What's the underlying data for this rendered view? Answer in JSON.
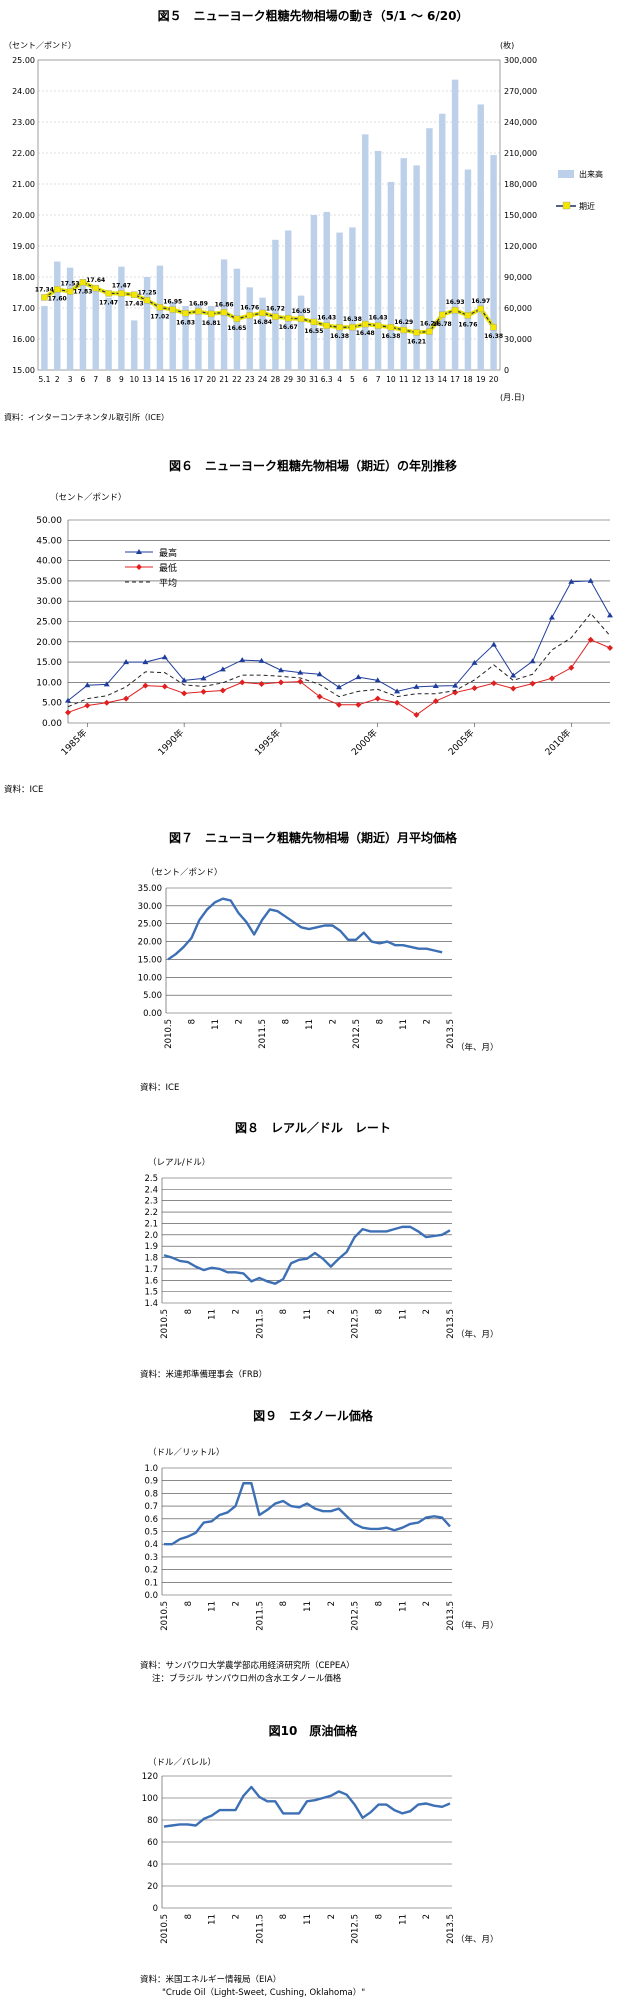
{
  "chart_data": [
    {
      "id": "fig5",
      "type": "bar+line",
      "title": "図５　ニューヨーク粗糖先物相場の動き（5/1 ～ 6/20）",
      "ylabel_left": "（セント／ポンド）",
      "ylabel_right": "(枚)",
      "xlabel": "(月.日)",
      "ylim_left": [
        15.0,
        25.0
      ],
      "ylim_right": [
        0,
        300000
      ],
      "left_ticks": [
        "15.00",
        "16.00",
        "17.00",
        "18.00",
        "19.00",
        "20.00",
        "21.00",
        "22.00",
        "23.00",
        "24.00",
        "25.00"
      ],
      "right_ticks": [
        "0",
        "30,000",
        "60,000",
        "90,000",
        "120,000",
        "150,000",
        "180,000",
        "210,000",
        "240,000",
        "270,000",
        "300,000"
      ],
      "categories": [
        "5.1",
        "2",
        "3",
        "6",
        "7",
        "8",
        "9",
        "10",
        "13",
        "14",
        "15",
        "16",
        "17",
        "20",
        "21",
        "22",
        "23",
        "24",
        "28",
        "29",
        "30",
        "31",
        "6.3",
        "4",
        "5",
        "6",
        "7",
        "10",
        "11",
        "12",
        "13",
        "14",
        "17",
        "18",
        "19",
        "20"
      ],
      "legend": [
        "出来高",
        "期近"
      ],
      "series": [
        {
          "name": "出来高",
          "values": [
            62000,
            105000,
            99000,
            88000,
            82000,
            70000,
            100000,
            48000,
            90000,
            101000,
            66000,
            62000,
            64000,
            62000,
            107000,
            98000,
            80000,
            70000,
            126000,
            135000,
            72000,
            150000,
            153000,
            133000,
            138000,
            228000,
            212000,
            182000,
            205000,
            198000,
            234000,
            248000,
            281000,
            194000,
            257000,
            208000
          ]
        },
        {
          "name": "期近",
          "values": [
            17.34,
            17.6,
            17.53,
            17.83,
            17.64,
            17.47,
            17.47,
            17.43,
            17.25,
            17.02,
            16.95,
            16.83,
            16.89,
            16.81,
            16.86,
            16.65,
            16.76,
            16.84,
            16.72,
            16.67,
            16.65,
            16.55,
            16.43,
            16.38,
            16.38,
            16.48,
            16.43,
            16.38,
            16.29,
            16.21,
            16.24,
            16.78,
            16.93,
            16.76,
            16.97,
            16.38
          ]
        }
      ],
      "point_labels": [
        "17.34",
        "17.60",
        "17.53",
        "17.83",
        "17.64",
        "17.47",
        "17.47",
        "17.43",
        "17.25",
        "17.02",
        "16.95",
        "16.83",
        "16.89",
        "16.81",
        "16.86",
        "16.65",
        "16.76",
        "16.84",
        "16.72",
        "16.67",
        "16.65",
        "16.55",
        "16.43",
        "16.38",
        "16.38",
        "16.48",
        "16.43",
        "16.38",
        "16.29",
        "16.21",
        "16.24",
        "16.78",
        "16.93",
        "16.76",
        "16.97",
        "16.38"
      ],
      "source": "資料：インターコンチネンタル取引所（ICE）"
    },
    {
      "id": "fig6",
      "type": "line",
      "title": "図６　ニューヨーク粗糖先物相場（期近）の年別推移",
      "ylabel": "（セント／ポンド）",
      "ylim": [
        0,
        50
      ],
      "y_ticks": [
        "0.00",
        "5.00",
        "10.00",
        "15.00",
        "20.00",
        "25.00",
        "30.00",
        "35.00",
        "40.00",
        "45.00",
        "50.00"
      ],
      "x_ticks": [
        "1985年",
        "1990年",
        "1995年",
        "2000年",
        "2005年",
        "2010年"
      ],
      "x": [
        1984,
        1985,
        1986,
        1987,
        1988,
        1989,
        1990,
        1991,
        1992,
        1993,
        1994,
        1995,
        1996,
        1997,
        1998,
        1999,
        2000,
        2001,
        2002,
        2003,
        2004,
        2005,
        2006,
        2007,
        2008,
        2009,
        2010,
        2011,
        2012
      ],
      "legend": [
        "最高",
        "最低",
        "平均"
      ],
      "series": [
        {
          "name": "最高",
          "values": [
            5.5,
            9.3,
            9.5,
            15.0,
            15.0,
            16.2,
            10.5,
            11.0,
            13.2,
            15.5,
            15.3,
            13.0,
            12.4,
            12.0,
            8.8,
            11.3,
            10.5,
            7.8,
            8.9,
            9.1,
            9.2,
            14.8,
            19.3,
            11.7,
            15.2,
            26.0,
            34.8,
            35.0,
            26.5
          ]
        },
        {
          "name": "最低",
          "values": [
            2.6,
            4.3,
            5.0,
            6.0,
            9.2,
            9.0,
            7.3,
            7.7,
            8.0,
            10.0,
            9.6,
            10.0,
            10.2,
            6.5,
            4.5,
            4.5,
            6.0,
            5.0,
            2.0,
            5.4,
            7.5,
            8.6,
            9.8,
            8.5,
            9.7,
            11.0,
            13.6,
            20.5,
            18.5
          ]
        },
        {
          "name": "平均",
          "values": [
            4.0,
            6.0,
            6.7,
            8.9,
            12.6,
            12.4,
            9.4,
            9.0,
            9.9,
            11.8,
            11.8,
            11.5,
            11.1,
            9.5,
            6.5,
            7.8,
            8.3,
            6.5,
            7.2,
            7.2,
            8.0,
            10.6,
            14.3,
            10.5,
            12.0,
            18.0,
            21.0,
            27.0,
            21.5
          ]
        }
      ],
      "source": "資料：ICE"
    },
    {
      "id": "fig7",
      "type": "line",
      "title": "図７　ニューヨーク粗糖先物相場（期近）月平均価格",
      "ylabel": "（セント／ポンド）",
      "xlabel": "（年、月）",
      "ylim": [
        0,
        35
      ],
      "y_ticks": [
        "0.00",
        "5.00",
        "10.00",
        "15.00",
        "20.00",
        "25.00",
        "30.00",
        "35.00"
      ],
      "x_ticks": [
        "2010.5",
        "8",
        "11",
        "2",
        "2011.5",
        "8",
        "11",
        "2",
        "2012.5",
        "8",
        "11",
        "2",
        "2013.5"
      ],
      "values": [
        15.0,
        16.5,
        18.5,
        21.0,
        26.0,
        29.0,
        31.0,
        32.0,
        31.5,
        28.0,
        25.5,
        22.0,
        26.0,
        29.0,
        28.5,
        27.0,
        25.5,
        24.0,
        23.5,
        24.0,
        24.5,
        24.5,
        23.0,
        20.5,
        20.5,
        22.5,
        20.0,
        19.5,
        20.0,
        19.0,
        19.0,
        18.5,
        18.0,
        18.0,
        17.5,
        17.0
      ],
      "source": "資料：ICE"
    },
    {
      "id": "fig8",
      "type": "line",
      "title": "図８　レアル／ドル　レート",
      "ylabel": "（レアル/ドル）",
      "xlabel": "（年、月）",
      "ylim": [
        1.4,
        2.5
      ],
      "y_ticks": [
        "1.4",
        "1.5",
        "1.6",
        "1.7",
        "1.8",
        "1.9",
        "2.0",
        "2.1",
        "2.2",
        "2.3",
        "2.4",
        "2.5"
      ],
      "x_ticks": [
        "2010.5",
        "8",
        "11",
        "2",
        "2011.5",
        "8",
        "11",
        "2",
        "2012.5",
        "8",
        "11",
        "2",
        "2013.5"
      ],
      "values": [
        1.82,
        1.8,
        1.77,
        1.76,
        1.72,
        1.69,
        1.71,
        1.7,
        1.67,
        1.67,
        1.66,
        1.59,
        1.62,
        1.59,
        1.57,
        1.61,
        1.75,
        1.78,
        1.79,
        1.84,
        1.79,
        1.72,
        1.79,
        1.85,
        1.98,
        2.05,
        2.03,
        2.03,
        2.03,
        2.05,
        2.07,
        2.07,
        2.03,
        1.98,
        1.99,
        2.0,
        2.04
      ],
      "source": "資料：米連邦準備理事会（FRB）"
    },
    {
      "id": "fig9",
      "type": "line",
      "title": "図９　エタノール価格",
      "ylabel": "（ドル／リットル）",
      "xlabel": "（年、月）",
      "ylim": [
        0.0,
        1.0
      ],
      "y_ticks": [
        "0.0",
        "0.1",
        "0.2",
        "0.3",
        "0.4",
        "0.5",
        "0.6",
        "0.7",
        "0.8",
        "0.9",
        "1.0"
      ],
      "x_ticks": [
        "2010.5",
        "8",
        "11",
        "2",
        "2011.5",
        "8",
        "11",
        "2",
        "2012.5",
        "8",
        "11",
        "2",
        "2013.5"
      ],
      "values": [
        0.4,
        0.4,
        0.44,
        0.46,
        0.49,
        0.57,
        0.58,
        0.63,
        0.65,
        0.7,
        0.88,
        0.88,
        0.63,
        0.67,
        0.72,
        0.74,
        0.7,
        0.69,
        0.72,
        0.68,
        0.66,
        0.66,
        0.68,
        0.62,
        0.56,
        0.53,
        0.52,
        0.52,
        0.53,
        0.51,
        0.53,
        0.56,
        0.57,
        0.61,
        0.62,
        0.61,
        0.54
      ],
      "source": "資料：サンパウロ大学農学部応用経済研究所（CEPEA）",
      "note": "注：ブラジル サンパウロ州の含水エタノール価格"
    },
    {
      "id": "fig10",
      "type": "line",
      "title": "図10　原油価格",
      "ylabel": "（ドル／バレル）",
      "xlabel": "（年、月）",
      "ylim": [
        0,
        120
      ],
      "y_ticks": [
        "0",
        "20",
        "40",
        "60",
        "80",
        "100",
        "120"
      ],
      "x_ticks": [
        "2010.5",
        "8",
        "11",
        "2",
        "2011.5",
        "8",
        "11",
        "2",
        "2012.5",
        "8",
        "11",
        "2",
        "2013.5"
      ],
      "values": [
        74,
        75,
        76,
        76,
        75,
        81,
        84,
        89,
        89,
        89,
        102,
        110,
        101,
        97,
        97,
        86,
        86,
        86,
        97,
        98,
        100,
        102,
        106,
        103,
        94,
        82,
        87,
        94,
        94,
        89,
        86,
        88,
        94,
        95,
        93,
        92,
        95
      ],
      "source": "資料：米国エネルギー情報局（EIA）",
      "note": "\"Crude Oil（Light-Sweet, Cushing, Oklahoma）\""
    }
  ]
}
